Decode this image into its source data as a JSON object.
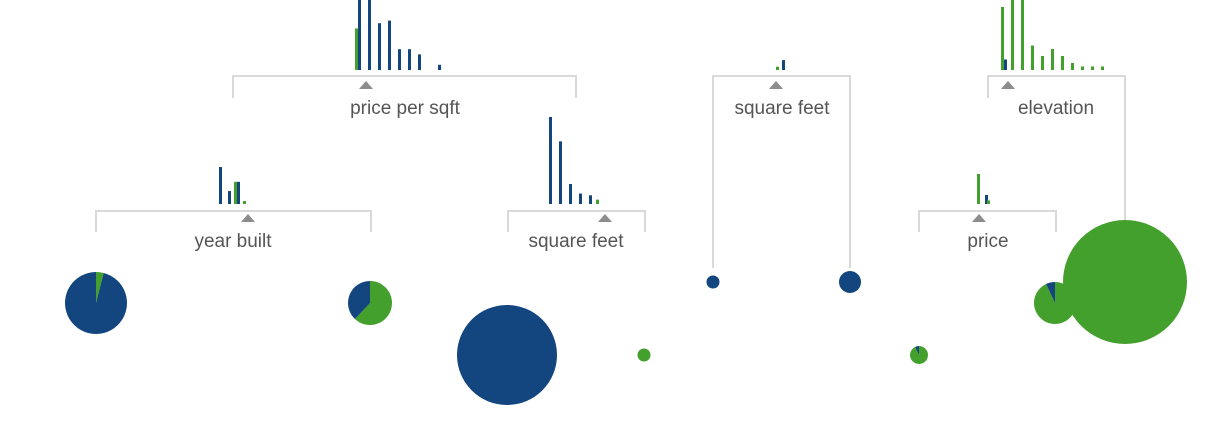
{
  "colors": {
    "blue": "#13457f",
    "green": "#43a02c",
    "line": "#d9d9d9",
    "marker": "#8c8c8c",
    "text": "#555555"
  },
  "splits": [
    {
      "id": "n0",
      "label": "price per sqft",
      "histogram": [
        {
          "g": 0.8,
          "b": 1.4
        },
        {
          "g": 0.0,
          "b": 1.4
        },
        {
          "g": 0.0,
          "b": 0.9
        },
        {
          "g": 0.0,
          "b": 0.95
        },
        {
          "g": 0.0,
          "b": 0.4
        },
        {
          "g": 0.0,
          "b": 0.4
        },
        {
          "g": 0.0,
          "b": 0.3
        },
        {
          "g": 0.0,
          "b": 0.0
        },
        {
          "g": 0.0,
          "b": 0.1
        }
      ]
    },
    {
      "id": "n1",
      "label": "year built",
      "histogram": [
        {
          "g": 0.0,
          "b": 1.0
        },
        {
          "g": 0.0,
          "b": 0.35
        },
        {
          "g": 0.6,
          "b": 0.6
        },
        {
          "g": 0.08,
          "b": 0.0
        }
      ]
    },
    {
      "id": "n2",
      "label": "square feet",
      "histogram": [
        {
          "g": 0.0,
          "b": 1.0
        },
        {
          "g": 0.0,
          "b": 0.72
        },
        {
          "g": 0.0,
          "b": 0.23
        },
        {
          "g": 0.0,
          "b": 0.12
        },
        {
          "g": 0.0,
          "b": 0.1
        },
        {
          "g": 0.05,
          "b": 0.0
        }
      ]
    },
    {
      "id": "n3",
      "label": "square feet",
      "histogram": [
        {
          "g": 0.1,
          "b": 0.0
        },
        {
          "g": 0.0,
          "b": 0.3
        }
      ]
    },
    {
      "id": "n4",
      "label": "elevation",
      "histogram": [
        {
          "g": 0.9,
          "b": 0.15
        },
        {
          "g": 1.0,
          "b": 0.0
        },
        {
          "g": 1.0,
          "b": 0.0
        },
        {
          "g": 0.35,
          "b": 0.0
        },
        {
          "g": 0.2,
          "b": 0.0
        },
        {
          "g": 0.3,
          "b": 0.0
        },
        {
          "g": 0.2,
          "b": 0.0
        },
        {
          "g": 0.1,
          "b": 0.0
        },
        {
          "g": 0.05,
          "b": 0.0
        },
        {
          "g": 0.05,
          "b": 0.0
        },
        {
          "g": 0.05,
          "b": 0.0
        }
      ]
    },
    {
      "id": "n5",
      "label": "price",
      "histogram": [
        {
          "g": 1.0,
          "b": 0.0
        },
        {
          "g": 0.0,
          "b": 0.3
        },
        {
          "g": 0.12,
          "b": 0.0
        }
      ]
    }
  ],
  "leaves": [
    {
      "id": "l0",
      "green_fraction": 0.04
    },
    {
      "id": "l1",
      "green_fraction": 0.62
    },
    {
      "id": "l2",
      "green_fraction": 0.0
    },
    {
      "id": "l3",
      "green_fraction": 1.0
    },
    {
      "id": "l4",
      "green_fraction": 0.0
    },
    {
      "id": "l5",
      "green_fraction": 0.0
    },
    {
      "id": "l6",
      "green_fraction": 0.93
    },
    {
      "id": "l7",
      "green_fraction": 1.0
    }
  ]
}
